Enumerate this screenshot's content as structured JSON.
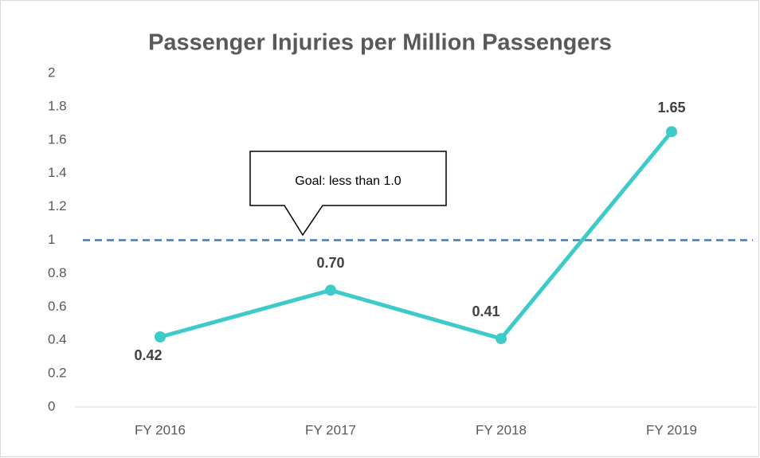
{
  "chart_data": {
    "type": "line",
    "title": "Passenger Injuries per Million Passengers",
    "categories": [
      "FY 2016",
      "FY 2017",
      "FY 2018",
      "FY 2019"
    ],
    "values": [
      0.42,
      0.7,
      0.41,
      1.65
    ],
    "value_labels": [
      "0.42",
      "0.70",
      "0.41",
      "1.65"
    ],
    "color": "#3fcaca",
    "ylim": [
      0,
      2
    ],
    "yticks": [
      0,
      0.2,
      0.4,
      0.6,
      0.8,
      1,
      1.2,
      1.4,
      1.6,
      1.8,
      2
    ],
    "grid": false,
    "goal_line": 1,
    "goal_color": "#4a78b0",
    "annotation": "Goal: less than 1.0"
  }
}
